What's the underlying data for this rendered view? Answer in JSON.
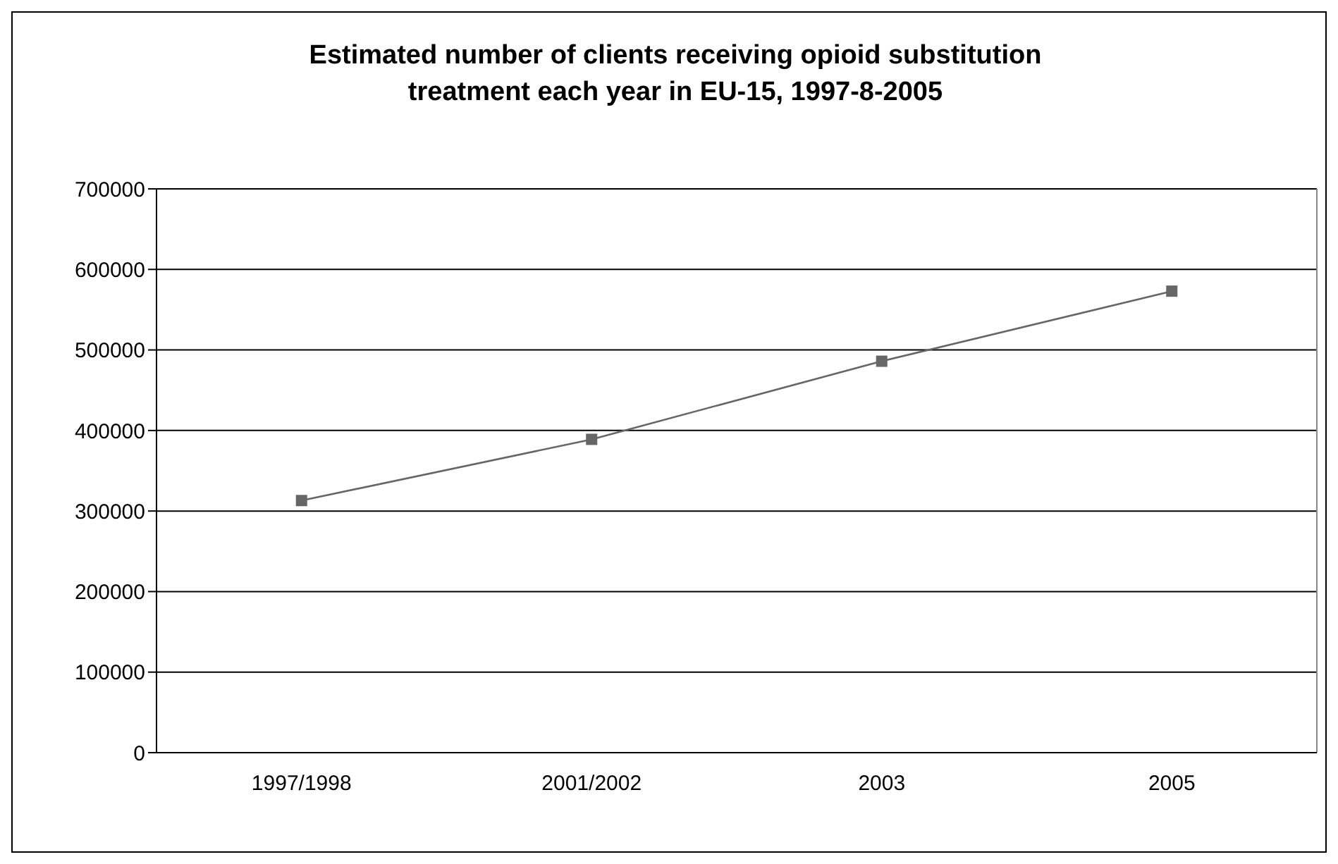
{
  "chart_data": {
    "type": "line",
    "title": "Estimated number of clients receiving opioid substitution treatment each year in EU-15, 1997-8-2005",
    "categories": [
      "1997/1998",
      "2001/2002",
      "2003",
      "2005"
    ],
    "series": [
      {
        "color": "#666666",
        "values": [
          313000,
          389000,
          486000,
          573000
        ]
      }
    ],
    "ylim": [
      0,
      700000
    ],
    "yticks": [
      0,
      100000,
      200000,
      300000,
      400000,
      500000,
      600000,
      700000
    ],
    "grid": "y",
    "legend": false,
    "marker": "square",
    "line_style": "solid"
  }
}
